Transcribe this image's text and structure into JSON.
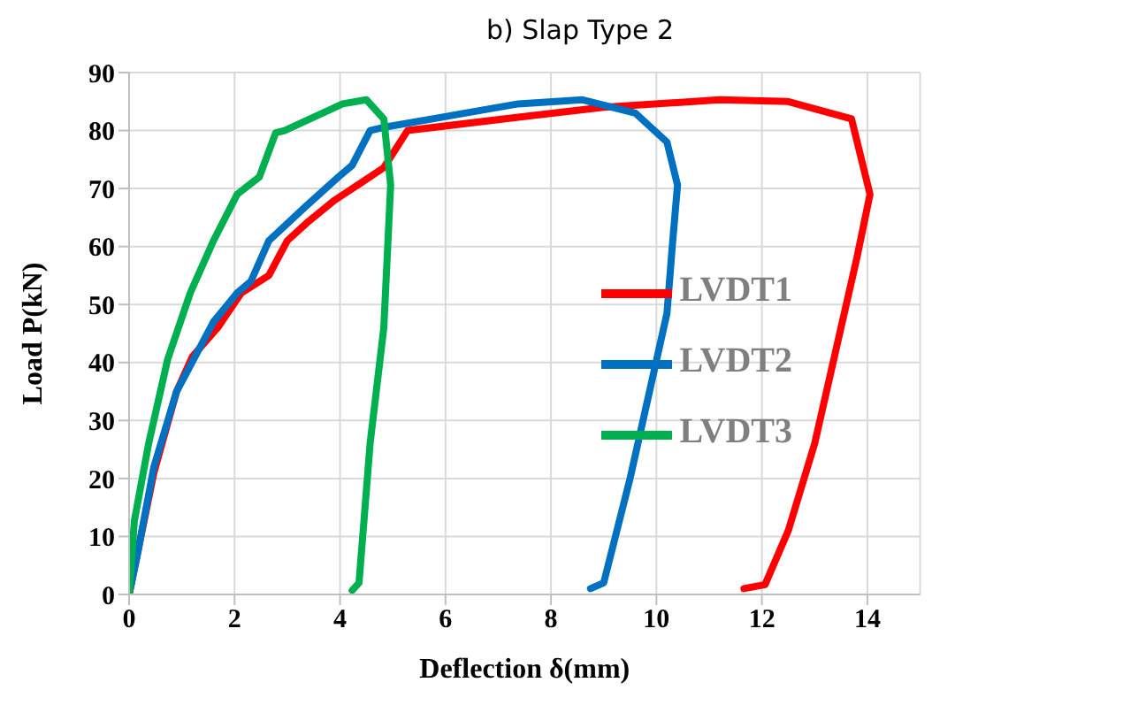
{
  "chart_data": {
    "type": "line",
    "title": "b) Slap Type 2",
    "xlabel": "Deflection δ(mm)",
    "ylabel": "Load P(kN)",
    "xlim": [
      0,
      15
    ],
    "xticks": [
      0,
      2,
      4,
      6,
      8,
      10,
      12,
      14
    ],
    "ylim": [
      0,
      90
    ],
    "yticks": [
      0,
      10,
      20,
      30,
      40,
      50,
      60,
      70,
      80,
      90
    ],
    "grid": true,
    "legend": "right",
    "marker": "none",
    "line_style": "solid",
    "series": [
      {
        "name": "LVDT1",
        "color": "#ff0000",
        "x": [
          0,
          0.47,
          0.9,
          1.2,
          1.68,
          2.13,
          2.65,
          3.0,
          3.36,
          3.9,
          4.4,
          4.83,
          5.28,
          7.38,
          9.0,
          11.2,
          12.5,
          13.7,
          14.05,
          13.8,
          13.4,
          13.0,
          12.5,
          12.06,
          11.66
        ],
        "values": [
          0,
          21,
          35,
          41,
          46,
          52,
          55,
          61,
          64,
          68,
          71,
          73.6,
          80,
          82.3,
          84,
          85.3,
          85,
          82,
          69,
          58,
          42,
          26,
          11,
          1.7,
          1
        ]
      },
      {
        "name": "LVDT2",
        "color": "#0070c0",
        "x": [
          0,
          0.16,
          0.47,
          0.9,
          1.6,
          2.05,
          2.31,
          2.65,
          3.36,
          3.97,
          4.23,
          4.57,
          4.8,
          7.38,
          8.6,
          9.6,
          10.2,
          10.4,
          10.3,
          10.2,
          9.5,
          9.0,
          8.75
        ],
        "values": [
          0,
          7,
          22,
          35,
          47,
          52,
          54,
          61,
          67,
          72,
          74,
          80,
          80.5,
          84.6,
          85.3,
          83,
          78,
          70.6,
          60,
          48.5,
          20,
          2,
          1
        ]
      },
      {
        "name": "LVDT3",
        "color": "#00b050",
        "x": [
          0,
          0.1,
          0.37,
          0.73,
          1.16,
          1.6,
          2.05,
          2.47,
          2.78,
          2.95,
          4.05,
          4.5,
          4.83,
          4.96,
          4.83,
          4.57,
          4.36,
          4.23
        ],
        "values": [
          0,
          12.7,
          26,
          40.5,
          52,
          61,
          69,
          72,
          79.6,
          80,
          84.6,
          85.3,
          82,
          70.6,
          46,
          26,
          2,
          0.7
        ]
      }
    ]
  }
}
